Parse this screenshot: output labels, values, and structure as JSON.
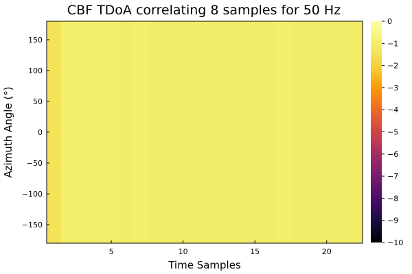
{
  "chart_data": {
    "type": "heatmap",
    "title": "CBF TDoA correlating 8 samples for 50 Hz",
    "xlabel": "Time Samples",
    "ylabel": "Azimuth Angle (°)",
    "xlim": [
      0.5,
      22.5
    ],
    "ylim": [
      -180,
      180
    ],
    "x_ticks": [
      5,
      10,
      15,
      20
    ],
    "y_ticks": [
      150,
      100,
      50,
      0,
      -50,
      -100,
      -150
    ],
    "x_tick_labels": [
      "5",
      "10",
      "15",
      "20"
    ],
    "y_tick_labels": [
      "150",
      "100",
      "50",
      "0",
      "−50",
      "−100",
      "−150"
    ],
    "x": [
      1,
      2,
      3,
      4,
      5,
      6,
      7,
      8,
      9,
      10,
      11,
      12,
      13,
      14,
      15,
      16,
      17,
      18,
      19,
      20,
      21,
      22
    ],
    "values": [
      -1.4,
      -1.0,
      -1.0,
      -1.0,
      -1.0,
      -1.05,
      -1.0,
      -1.05,
      -1.05,
      -1.05,
      -1.05,
      -1.05,
      -1.05,
      -1.05,
      -1.05,
      -1.05,
      -1.0,
      -1.05,
      -1.05,
      -1.05,
      -1.05,
      -1.05
    ],
    "grid": false,
    "colorbar": {
      "min": -10,
      "max": 0,
      "colormap": "inferno",
      "ticks": [
        0,
        -1,
        -2,
        -3,
        -4,
        -5,
        -6,
        -7,
        -8,
        -9,
        -10
      ],
      "tick_labels": [
        "0",
        "−1",
        "−2",
        "−3",
        "−4",
        "−5",
        "−6",
        "−7",
        "−8",
        "−9",
        "−10"
      ]
    }
  }
}
